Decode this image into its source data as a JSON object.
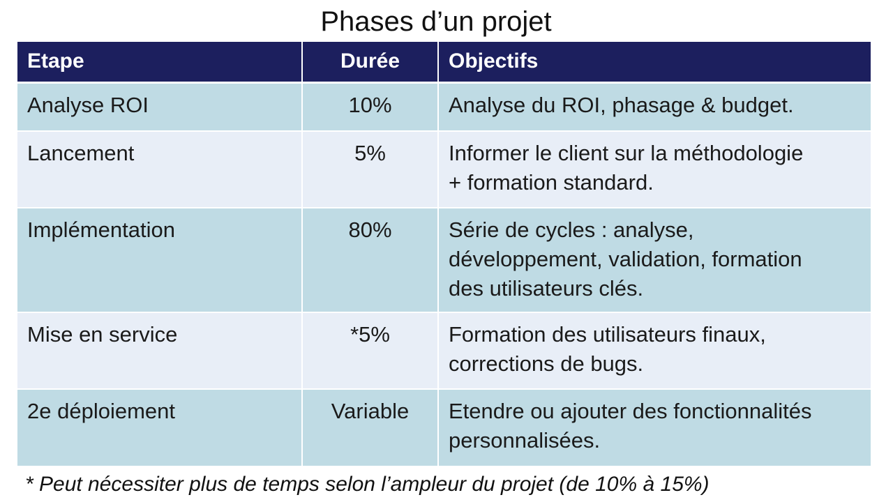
{
  "title": "Phases d’un projet",
  "table": {
    "headers": [
      "Etape",
      "Durée",
      "Objectifs"
    ],
    "rows": [
      {
        "etape": "Analyse ROI",
        "duree": "10%",
        "objectifs": [
          "Analyse du ROI, phasage & budget."
        ]
      },
      {
        "etape": "Lancement",
        "duree": "5%",
        "objectifs": [
          "Informer le client sur la méthodologie",
          "+ formation standard."
        ]
      },
      {
        "etape": "Implémentation",
        "duree": "80%",
        "objectifs": [
          "Série de cycles : analyse,",
          "développement, validation, formation",
          "des utilisateurs clés."
        ]
      },
      {
        "etape": "Mise en service",
        "duree": "*5%",
        "objectifs": [
          "Formation des utilisateurs finaux,",
          "corrections de bugs."
        ]
      },
      {
        "etape": "2e déploiement",
        "duree": "Variable",
        "objectifs": [
          "Etendre ou ajouter des fonctionnalités",
          "personnalisées."
        ]
      }
    ]
  },
  "footnote": "* Peut nécessiter plus de temps selon l’ampleur du projet (de 10% à 15%)",
  "colors": {
    "header_bg": "#1c1f5e",
    "row_band_a": "#bfdbe4",
    "row_band_b": "#e8eef7"
  }
}
